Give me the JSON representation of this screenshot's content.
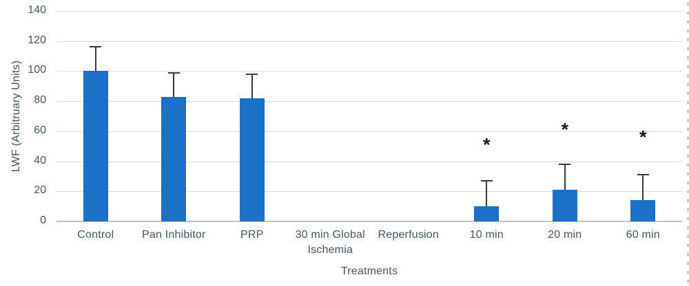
{
  "chart_data": {
    "type": "bar",
    "title": "",
    "xlabel": "Treatments",
    "ylabel": "LWF (Arbitruary Units)",
    "categories": [
      "Control",
      "Pan Inhibitor",
      "PRP",
      "30 min Global Ischemia",
      "Reperfusion",
      "10 min",
      "20 min",
      "60 min"
    ],
    "values": [
      100,
      83,
      82,
      0,
      0,
      10,
      21,
      14
    ],
    "error_upper": [
      16,
      16,
      16,
      0,
      0,
      17,
      17,
      17
    ],
    "significance": [
      null,
      null,
      null,
      null,
      null,
      "*",
      "*",
      "*"
    ],
    "significance_y": [
      null,
      null,
      null,
      null,
      null,
      52,
      62,
      57
    ],
    "ylim": [
      0,
      140
    ],
    "yticks": [
      0,
      20,
      40,
      60,
      80,
      100,
      120,
      140
    ],
    "grid": true,
    "legend": "none",
    "bar_color": "#1B71C8",
    "gridline_color": "#D9D9D9",
    "axis_line_color": "#BFBFBF",
    "error_bar_color": "#3A3A3A",
    "text_color": "#44546A",
    "marker_color": "#1a1a1a"
  }
}
